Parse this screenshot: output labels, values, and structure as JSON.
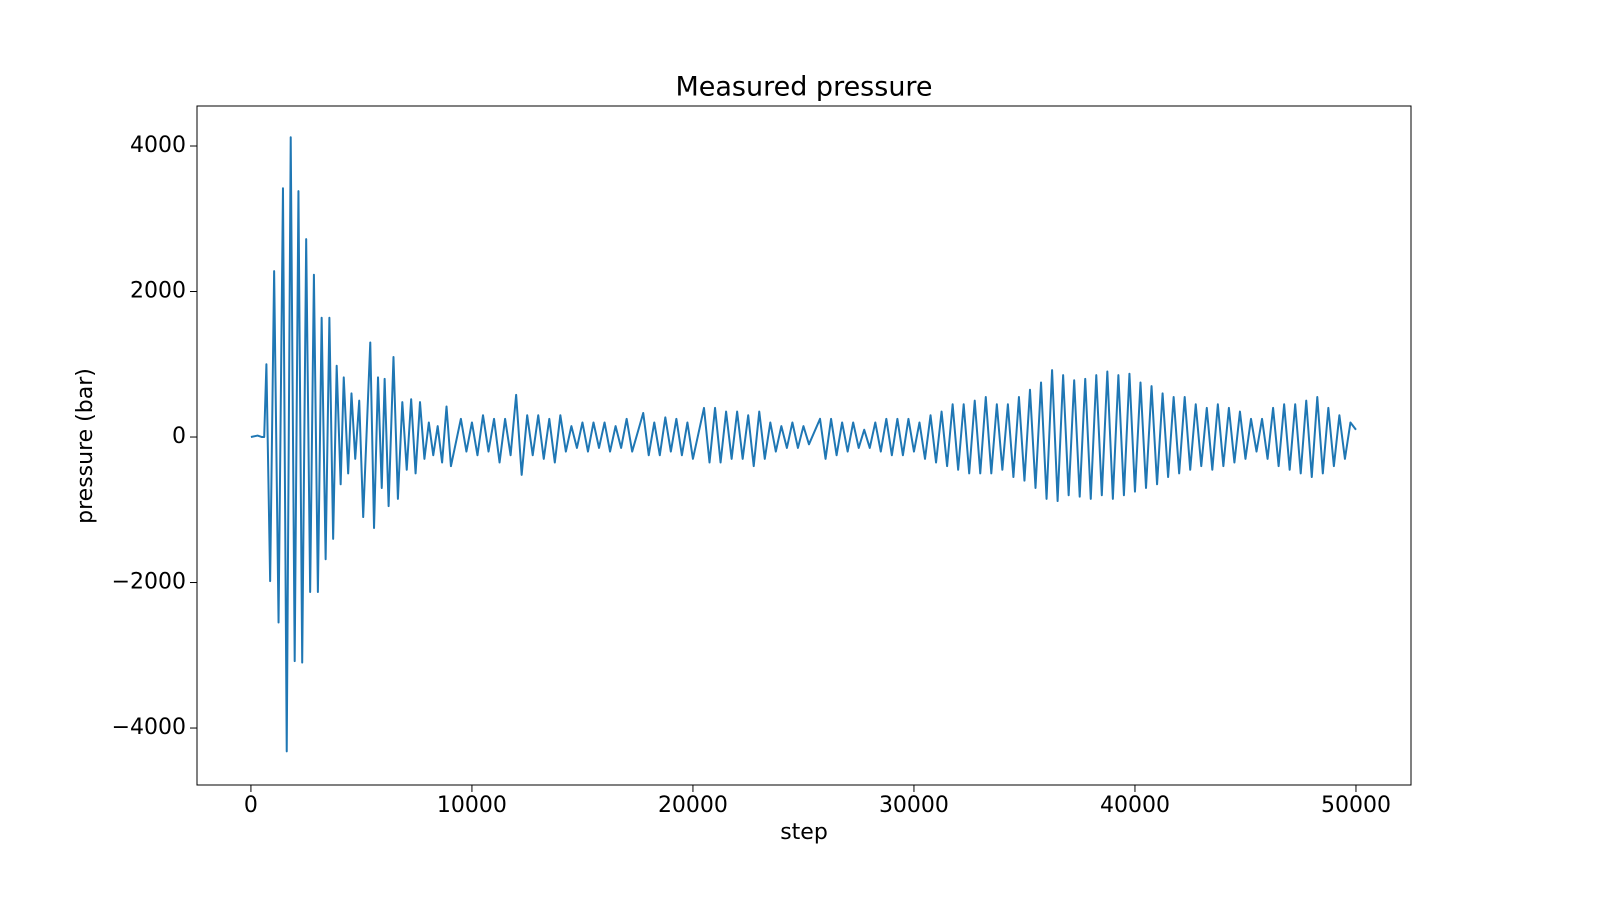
{
  "chart_data": {
    "type": "line",
    "title": "Measured pressure",
    "x_label": "step",
    "y_label": "pressure (bar)",
    "color": "#1f77b4",
    "x": [
      0,
      300,
      500,
      600,
      700,
      870,
      1050,
      1250,
      1450,
      1620,
      1800,
      1980,
      2150,
      2320,
      2500,
      2680,
      2850,
      3030,
      3200,
      3380,
      3550,
      3720,
      3880,
      4060,
      4200,
      4400,
      4550,
      4720,
      4900,
      5080,
      5400,
      5570,
      5750,
      5920,
      6050,
      6230,
      6450,
      6650,
      6850,
      7050,
      7250,
      7450,
      7650,
      7850,
      8050,
      8250,
      8450,
      8650,
      8850,
      9050,
      9500,
      9750,
      10000,
      10250,
      10500,
      10750,
      11000,
      11250,
      11500,
      11750,
      12000,
      12250,
      12500,
      12750,
      13000,
      13250,
      13500,
      13750,
      14000,
      14250,
      14500,
      14750,
      15000,
      15250,
      15500,
      15750,
      16000,
      16250,
      16500,
      16750,
      17000,
      17250,
      17750,
      18000,
      18250,
      18500,
      18750,
      19000,
      19250,
      19500,
      19750,
      20000,
      20500,
      20750,
      21000,
      21250,
      21500,
      21750,
      22000,
      22250,
      22500,
      22750,
      23000,
      23250,
      23500,
      23750,
      24000,
      24250,
      24500,
      24750,
      25000,
      25250,
      25750,
      26000,
      26250,
      26500,
      26750,
      27000,
      27250,
      27500,
      27750,
      28000,
      28250,
      28500,
      28750,
      29000,
      29250,
      29500,
      29750,
      30000,
      30250,
      30500,
      30750,
      31000,
      31250,
      31500,
      31750,
      32000,
      32250,
      32500,
      32750,
      33000,
      33250,
      33500,
      33750,
      34000,
      34250,
      34500,
      34750,
      35000,
      35250,
      35500,
      35750,
      36000,
      36250,
      36500,
      36750,
      37000,
      37250,
      37500,
      37750,
      38000,
      38250,
      38500,
      38750,
      39000,
      39250,
      39500,
      39750,
      40000,
      40250,
      40500,
      40750,
      41000,
      41250,
      41500,
      41750,
      42000,
      42250,
      42500,
      42750,
      43000,
      43250,
      43500,
      43750,
      44000,
      44250,
      44500,
      44750,
      45000,
      45250,
      45500,
      45750,
      46000,
      46250,
      46500,
      46750,
      47000,
      47250,
      47500,
      47750,
      48000,
      48250,
      48500,
      48750,
      49000,
      49250,
      49500,
      49750,
      50000
    ],
    "values": [
      0,
      20,
      0,
      0,
      1000,
      -1980,
      2280,
      -2550,
      3420,
      -4320,
      4120,
      -3080,
      3380,
      -3100,
      2720,
      -2130,
      2230,
      -2130,
      1640,
      -1680,
      1640,
      -1400,
      980,
      -650,
      820,
      -500,
      600,
      -300,
      500,
      -1100,
      1300,
      -1250,
      820,
      -700,
      800,
      -950,
      1100,
      -850,
      480,
      -450,
      520,
      -500,
      480,
      -300,
      200,
      -250,
      150,
      -350,
      420,
      -400,
      250,
      -200,
      200,
      -250,
      300,
      -200,
      250,
      -350,
      250,
      -250,
      580,
      -520,
      300,
      -250,
      300,
      -300,
      250,
      -350,
      300,
      -200,
      150,
      -150,
      200,
      -200,
      200,
      -150,
      200,
      -200,
      150,
      -150,
      250,
      -200,
      330,
      -250,
      200,
      -250,
      270,
      -200,
      250,
      -250,
      200,
      -300,
      400,
      -350,
      400,
      -350,
      350,
      -300,
      350,
      -300,
      300,
      -400,
      350,
      -300,
      200,
      -200,
      150,
      -150,
      200,
      -150,
      150,
      -100,
      250,
      -300,
      250,
      -250,
      200,
      -200,
      200,
      -150,
      100,
      -150,
      200,
      -200,
      250,
      -250,
      250,
      -250,
      250,
      -200,
      200,
      -300,
      300,
      -350,
      350,
      -400,
      450,
      -450,
      450,
      -500,
      500,
      -500,
      550,
      -500,
      450,
      -450,
      450,
      -550,
      550,
      -600,
      650,
      -700,
      750,
      -850,
      920,
      -880,
      850,
      -800,
      780,
      -820,
      800,
      -850,
      850,
      -800,
      900,
      -850,
      850,
      -800,
      870,
      -750,
      750,
      -700,
      700,
      -650,
      600,
      -550,
      550,
      -500,
      550,
      -450,
      450,
      -400,
      400,
      -450,
      450,
      -400,
      400,
      -350,
      350,
      -300,
      250,
      -200,
      250,
      -300,
      400,
      -400,
      450,
      -450,
      450,
      -500,
      500,
      -550,
      550,
      -500,
      400,
      -400,
      300,
      -300,
      200,
      100
    ],
    "xlim": [
      -2440,
      52490
    ],
    "ylim": [
      -4783,
      4550
    ],
    "xticks": [
      0,
      10000,
      20000,
      30000,
      40000,
      50000
    ],
    "yticks": [
      {
        "value": -4000,
        "label": "−4000"
      },
      {
        "value": -2000,
        "label": "−2000"
      },
      0,
      2000,
      4000
    ]
  }
}
